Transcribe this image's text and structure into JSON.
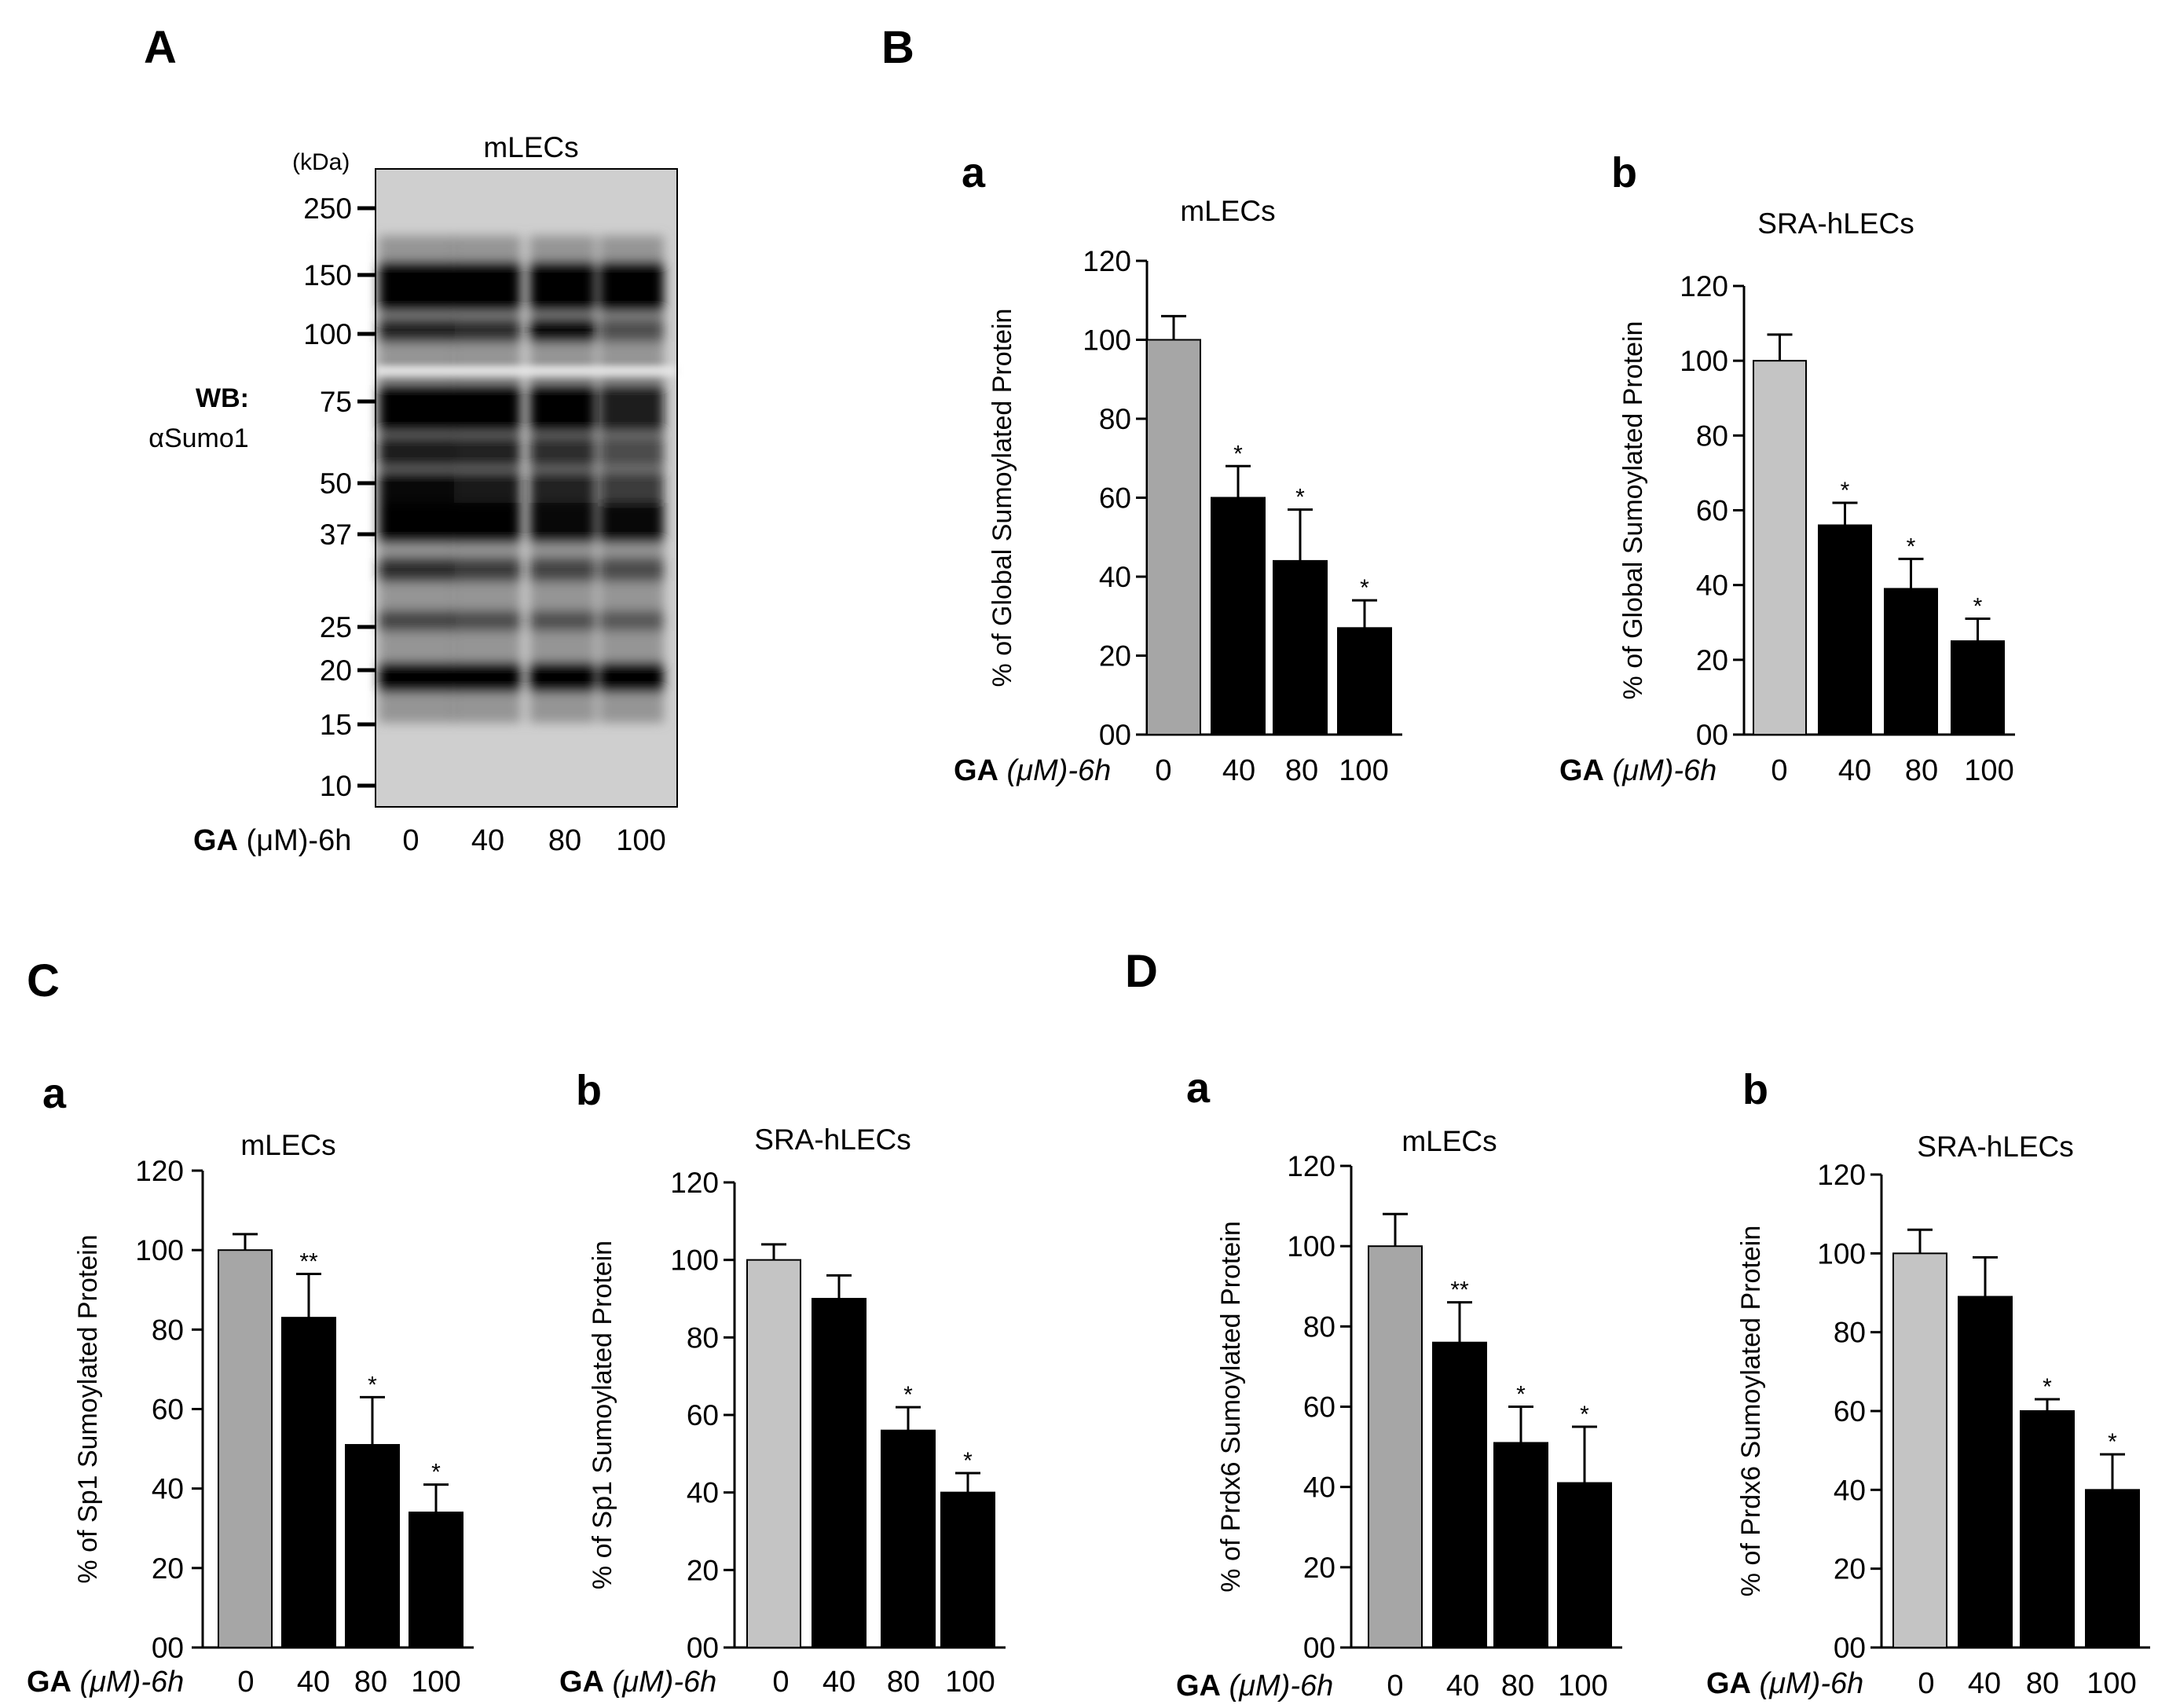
{
  "figure": {
    "panel_labels": {
      "A": "A",
      "B": "B",
      "C": "C",
      "D": "D"
    },
    "blot": {
      "title": "mLECs",
      "kda_label": "(kDa)",
      "markers": [
        "250",
        "150",
        "100",
        "75",
        "50",
        "37",
        "25",
        "20",
        "15",
        "10"
      ],
      "wb_label": "WB:",
      "antibody": "αSumo1",
      "ga_prefix": "GA",
      "ga_suffix": " (μM)-6h",
      "lanes": [
        "0",
        "40",
        "80",
        "100"
      ]
    }
  },
  "colors": {
    "control_bar": "#a6a6a6",
    "control_bar_light": "#c4c4c4",
    "treated_bar": "#000000"
  },
  "chart_data": [
    {
      "id": "B-a",
      "panel_label": "a",
      "type": "bar",
      "title": "mLECs",
      "ylabel": "% of Global  Sumoylated Protein",
      "categories": [
        "0",
        "40",
        "80",
        "100"
      ],
      "values": [
        100,
        60,
        44,
        27
      ],
      "errors": [
        6,
        8,
        13,
        7
      ],
      "significance": [
        "",
        "*",
        "*",
        "*"
      ],
      "ylim": [
        0,
        120
      ],
      "yticks": [
        "00",
        "20",
        "40",
        "60",
        "80",
        "100",
        "120"
      ],
      "xlabel_prefix": "GA",
      "xlabel_suffix": " (μM)-6h"
    },
    {
      "id": "B-b",
      "panel_label": "b",
      "type": "bar",
      "title": "SRA-hLECs",
      "ylabel": "% of Global  Sumoylated Protein",
      "categories": [
        "0",
        "40",
        "80",
        "100"
      ],
      "values": [
        100,
        56,
        39,
        25
      ],
      "errors": [
        7,
        6,
        8,
        6
      ],
      "significance": [
        "",
        "*",
        "*",
        "*"
      ],
      "ylim": [
        0,
        120
      ],
      "yticks": [
        "00",
        "20",
        "40",
        "60",
        "80",
        "100",
        "120"
      ],
      "xlabel_prefix": "GA",
      "xlabel_suffix": " (μM)-6h"
    },
    {
      "id": "C-a",
      "panel_label": "a",
      "type": "bar",
      "title": "mLECs",
      "ylabel": "% of Sp1 Sumoylated Protein",
      "categories": [
        "0",
        "40",
        "80",
        "100"
      ],
      "values": [
        100,
        83,
        51,
        34
      ],
      "errors": [
        4,
        11,
        12,
        7
      ],
      "significance": [
        "",
        "**",
        "*",
        "*"
      ],
      "ylim": [
        0,
        120
      ],
      "yticks": [
        "00",
        "20",
        "40",
        "60",
        "80",
        "100",
        "120"
      ],
      "xlabel_prefix": "GA",
      "xlabel_suffix": " (μM)-6h"
    },
    {
      "id": "C-b",
      "panel_label": "b",
      "type": "bar",
      "title": "SRA-hLECs",
      "ylabel": "% of Sp1 Sumoylated Protein",
      "categories": [
        "0",
        "40",
        "80",
        "100"
      ],
      "values": [
        100,
        90,
        56,
        40
      ],
      "errors": [
        4,
        6,
        6,
        5
      ],
      "significance": [
        "",
        "",
        "*",
        "*"
      ],
      "ylim": [
        0,
        120
      ],
      "yticks": [
        "00",
        "20",
        "40",
        "60",
        "80",
        "100",
        "120"
      ],
      "xlabel_prefix": "GA",
      "xlabel_suffix": " (μM)-6h"
    },
    {
      "id": "D-a",
      "panel_label": "a",
      "type": "bar",
      "title": "mLECs",
      "ylabel": "% of Prdx6 Sumoylated Protein",
      "categories": [
        "0",
        "40",
        "80",
        "100"
      ],
      "values": [
        100,
        76,
        51,
        41
      ],
      "errors": [
        8,
        10,
        9,
        14
      ],
      "significance": [
        "",
        "**",
        "*",
        "*"
      ],
      "ylim": [
        0,
        120
      ],
      "yticks": [
        "00",
        "20",
        "40",
        "60",
        "80",
        "100",
        "120"
      ],
      "xlabel_prefix": "GA",
      "xlabel_suffix": " (μM)-6h"
    },
    {
      "id": "D-b",
      "panel_label": "b",
      "type": "bar",
      "title": "SRA-hLECs",
      "ylabel": "% of Prdx6 Sumoylated Protein",
      "categories": [
        "0",
        "40",
        "80",
        "100"
      ],
      "values": [
        100,
        89,
        60,
        40
      ],
      "errors": [
        6,
        10,
        3,
        9
      ],
      "significance": [
        "",
        "",
        "*",
        "*"
      ],
      "ylim": [
        0,
        120
      ],
      "yticks": [
        "00",
        "20",
        "40",
        "60",
        "80",
        "100",
        "120"
      ],
      "xlabel_prefix": "GA",
      "xlabel_suffix": " (μM)-6h"
    }
  ]
}
